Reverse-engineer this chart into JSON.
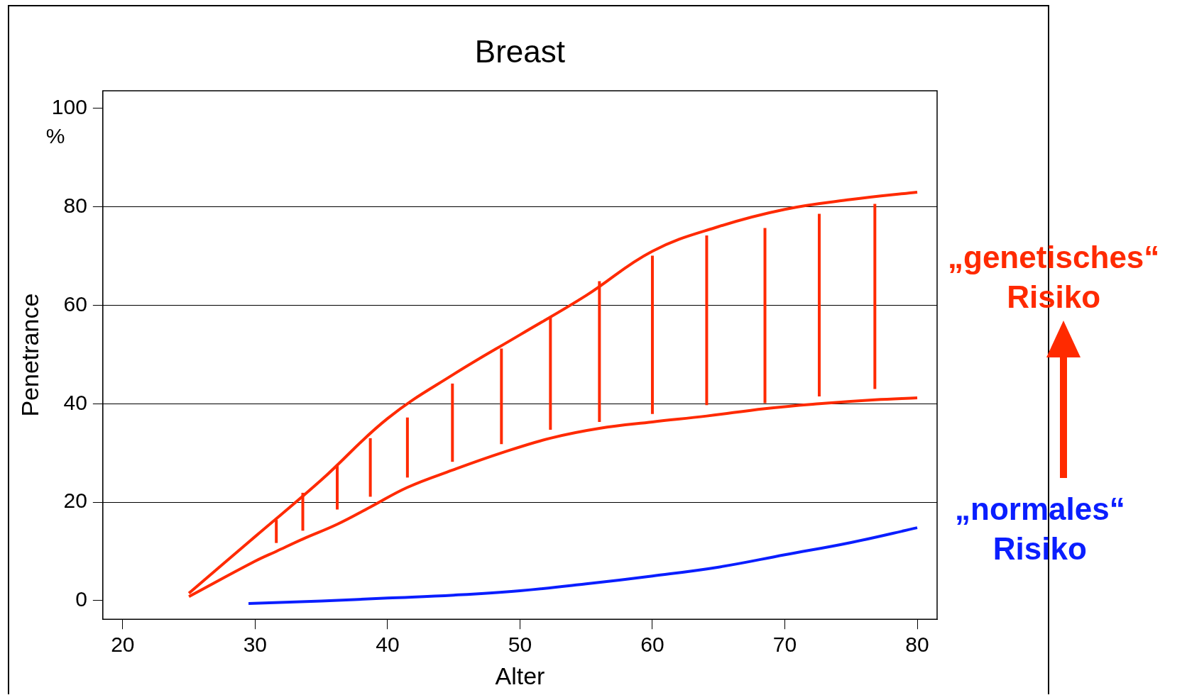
{
  "chart_data": {
    "type": "line",
    "title": "Breast",
    "xlabel": "Alter",
    "ylabel": "Penetrance",
    "annotations": [
      "%"
    ],
    "xlim": [
      18.5,
      81.5
    ],
    "ylim": [
      -3.8,
      103.6
    ],
    "xticks": [
      20,
      30,
      40,
      50,
      60,
      70,
      80
    ],
    "yticks": [
      0,
      20,
      40,
      60,
      80,
      100
    ],
    "grid": "y",
    "legend": false,
    "marker": "none",
    "line_style": "solid",
    "series": [
      {
        "name": "„genetisches“ Risiko",
        "color": "#ff2a00",
        "x": [
          25,
          30,
          35,
          40,
          45,
          50,
          55,
          60,
          65,
          70,
          75,
          80
        ],
        "values": [
          1.5,
          13,
          24.5,
          37,
          46,
          54,
          62,
          71,
          76,
          79.5,
          81.5,
          83
        ]
      },
      {
        "color": "#ff2a00",
        "x": [
          25,
          30,
          31.6,
          33.6,
          36.2,
          38.7,
          41.5,
          44.9,
          48.6,
          52.3,
          56,
          60,
          64.1,
          68.5,
          72.6,
          76.8,
          80
        ],
        "values": [
          0.8,
          8,
          10,
          12.5,
          15.5,
          19,
          23,
          26.5,
          30,
          33,
          35,
          36.3,
          37.5,
          39,
          40,
          40.8,
          41.2
        ],
        "errors": [
          null,
          null,
          [
            11.7,
            16.4
          ],
          [
            14.2,
            21.9
          ],
          [
            18.5,
            27.4
          ],
          [
            21.1,
            33
          ],
          [
            25,
            37.2
          ],
          [
            28.2,
            44.1
          ],
          [
            31.8,
            51.2
          ],
          [
            34.7,
            57.7
          ],
          [
            36.3,
            64.9
          ],
          [
            37.9,
            70.1
          ],
          [
            39.7,
            74.2
          ],
          [
            40.1,
            75.7
          ],
          [
            41.5,
            78.6
          ],
          [
            43,
            80.6
          ],
          null
        ]
      },
      {
        "name": "„normales“ Risiko",
        "color": "#0a1eff",
        "x": [
          29.5,
          35,
          40,
          45,
          50,
          55,
          60,
          65,
          70,
          75,
          80
        ],
        "values": [
          -0.6,
          -0.1,
          0.5,
          1.1,
          2,
          3.4,
          5,
          6.8,
          9.3,
          11.8,
          14.8
        ]
      }
    ]
  }
}
